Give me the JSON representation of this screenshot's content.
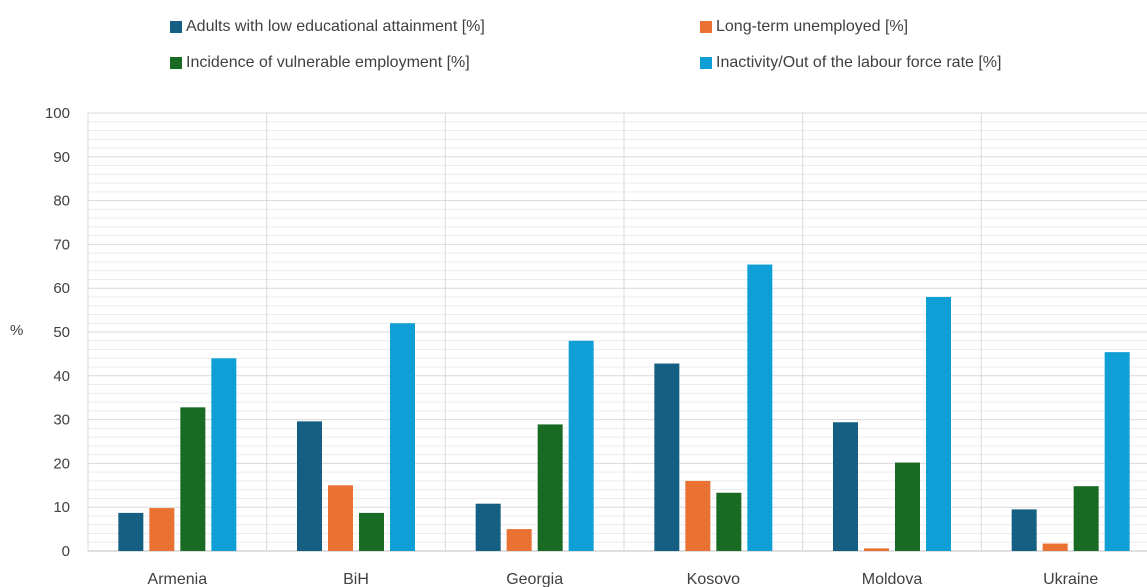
{
  "chart_data": {
    "type": "bar",
    "categories": [
      "Armenia",
      "BiH",
      "Georgia",
      "Kosovo",
      "Moldova",
      "Ukraine"
    ],
    "series": [
      {
        "name": "Adults with low educational attainment [%]",
        "color": "#156082",
        "values": [
          8.7,
          29.6,
          10.8,
          42.8,
          29.4,
          9.5
        ]
      },
      {
        "name": "Long-term unemployed [%]",
        "color": "#E97132",
        "values": [
          9.8,
          15.0,
          5.0,
          16.0,
          0.6,
          1.7
        ]
      },
      {
        "name": "Incidence of vulnerable employment [%]",
        "color": "#196B24",
        "values": [
          32.8,
          8.7,
          28.9,
          13.3,
          20.2,
          14.8
        ]
      },
      {
        "name": "Inactivity/Out of the labour force rate [%]",
        "color": "#0F9ED5",
        "values": [
          44.0,
          52.0,
          48.0,
          65.4,
          58.0,
          45.4
        ]
      }
    ],
    "ylabel": "%",
    "ylim": [
      0,
      100
    ],
    "yticks": [
      0,
      10,
      20,
      30,
      40,
      50,
      60,
      70,
      80,
      90,
      100
    ],
    "grid": true,
    "legend_position": "top"
  }
}
